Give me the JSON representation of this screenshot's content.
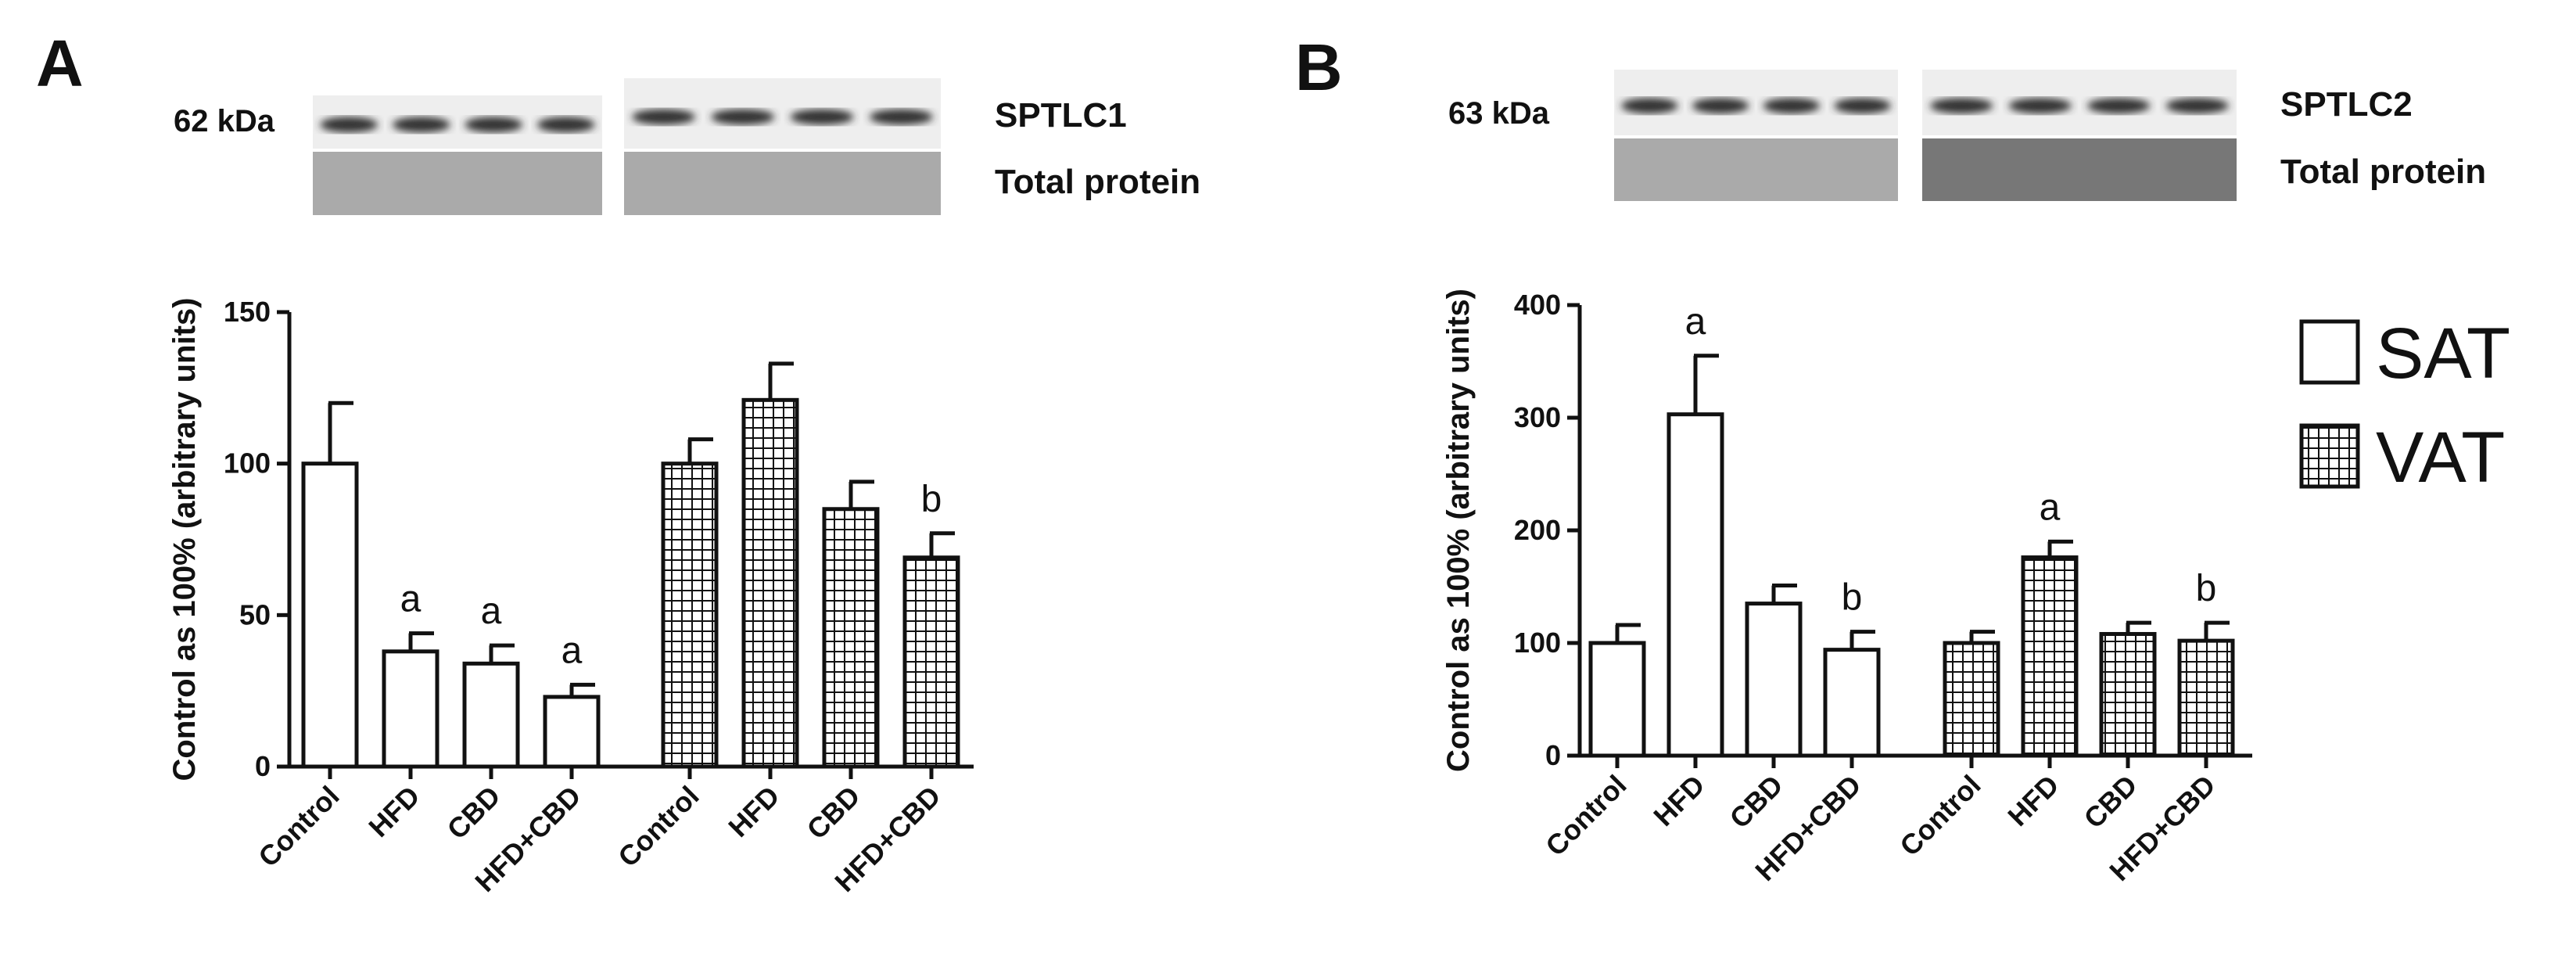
{
  "chart_data": [
    {
      "type": "bar",
      "panel": "A",
      "blot": {
        "marker": "62 kDa",
        "protein": "SPTLC1",
        "loading": "Total protein"
      },
      "ylabel": "Control as 100% (arbitrary units)",
      "categories": [
        "Control",
        "HFD",
        "CBD",
        "HFD+CBD"
      ],
      "ylim": [
        0,
        150
      ],
      "yticks": [
        0,
        50,
        100,
        150
      ],
      "series": [
        {
          "name": "SAT",
          "color": "#ffffff",
          "hatch": null,
          "values": [
            100,
            38,
            34,
            23
          ],
          "errors": [
            20,
            6,
            6,
            4
          ],
          "letters": [
            null,
            "a",
            "a",
            "a"
          ]
        },
        {
          "name": "VAT",
          "color": "#ffffff",
          "hatch": "grid",
          "values": [
            100,
            121,
            85,
            69
          ],
          "errors": [
            8,
            12,
            9,
            8
          ],
          "letters": [
            null,
            null,
            null,
            "b"
          ]
        }
      ]
    },
    {
      "type": "bar",
      "panel": "B",
      "blot": {
        "marker": "63 kDa",
        "protein": "SPTLC2",
        "loading": "Total protein"
      },
      "ylabel": "Control as 100% (arbitrary units)",
      "categories": [
        "Control",
        "HFD",
        "CBD",
        "HFD+CBD"
      ],
      "ylim": [
        0,
        400
      ],
      "yticks": [
        0,
        100,
        200,
        300,
        400
      ],
      "legend": "right",
      "series": [
        {
          "name": "SAT",
          "color": "#ffffff",
          "hatch": null,
          "values": [
            100,
            303,
            135,
            94
          ],
          "errors": [
            16,
            52,
            16,
            16
          ],
          "letters": [
            null,
            "a",
            null,
            "b"
          ]
        },
        {
          "name": "VAT",
          "color": "#ffffff",
          "hatch": "grid",
          "values": [
            100,
            176,
            108,
            102
          ],
          "errors": [
            10,
            14,
            10,
            16
          ],
          "letters": [
            null,
            "a",
            null,
            "b"
          ]
        }
      ]
    }
  ]
}
